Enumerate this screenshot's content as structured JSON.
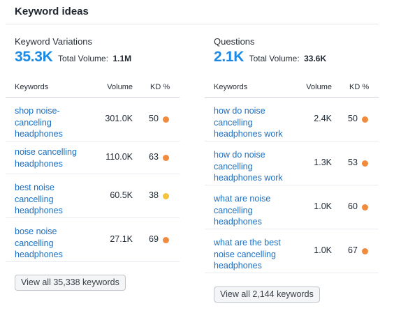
{
  "header": {
    "title": "Keyword ideas"
  },
  "colors": {
    "accent": "#1a8ae5",
    "link": "#1a6fc4",
    "kd_orange": "#f08a3c",
    "kd_yellow": "#f5c33b"
  },
  "variations": {
    "title": "Keyword Variations",
    "count": "35.3K",
    "total_label": "Total Volume:",
    "total_value": "1.1M",
    "columns": {
      "keyword": "Keywords",
      "volume": "Volume",
      "kd": "KD %"
    },
    "rows": [
      {
        "keyword": "shop noise-canceling headphones",
        "volume": "301.0K",
        "kd": "50",
        "kd_color": "#f08a3c"
      },
      {
        "keyword": "noise cancelling headphones",
        "volume": "110.0K",
        "kd": "63",
        "kd_color": "#f08a3c"
      },
      {
        "keyword": "best noise cancelling headphones",
        "volume": "60.5K",
        "kd": "38",
        "kd_color": "#f5c33b"
      },
      {
        "keyword": "bose noise cancelling headphones",
        "volume": "27.1K",
        "kd": "69",
        "kd_color": "#f08a3c"
      }
    ],
    "view_all": "View all 35,338 keywords"
  },
  "questions": {
    "title": "Questions",
    "count": "2.1K",
    "total_label": "Total Volume:",
    "total_value": "33.6K",
    "columns": {
      "keyword": "Keywords",
      "volume": "Volume",
      "kd": "KD %"
    },
    "rows": [
      {
        "keyword": "how do noise cancelling headphones work",
        "volume": "2.4K",
        "kd": "50",
        "kd_color": "#f08a3c"
      },
      {
        "keyword": "how do noise cancelling headphones work",
        "volume": "1.3K",
        "kd": "53",
        "kd_color": "#f08a3c"
      },
      {
        "keyword": "what are noise cancelling headphones",
        "volume": "1.0K",
        "kd": "60",
        "kd_color": "#f08a3c"
      },
      {
        "keyword": "what are the best noise cancelling headphones",
        "volume": "1.0K",
        "kd": "67",
        "kd_color": "#f08a3c"
      }
    ],
    "view_all": "View all 2,144 keywords"
  }
}
